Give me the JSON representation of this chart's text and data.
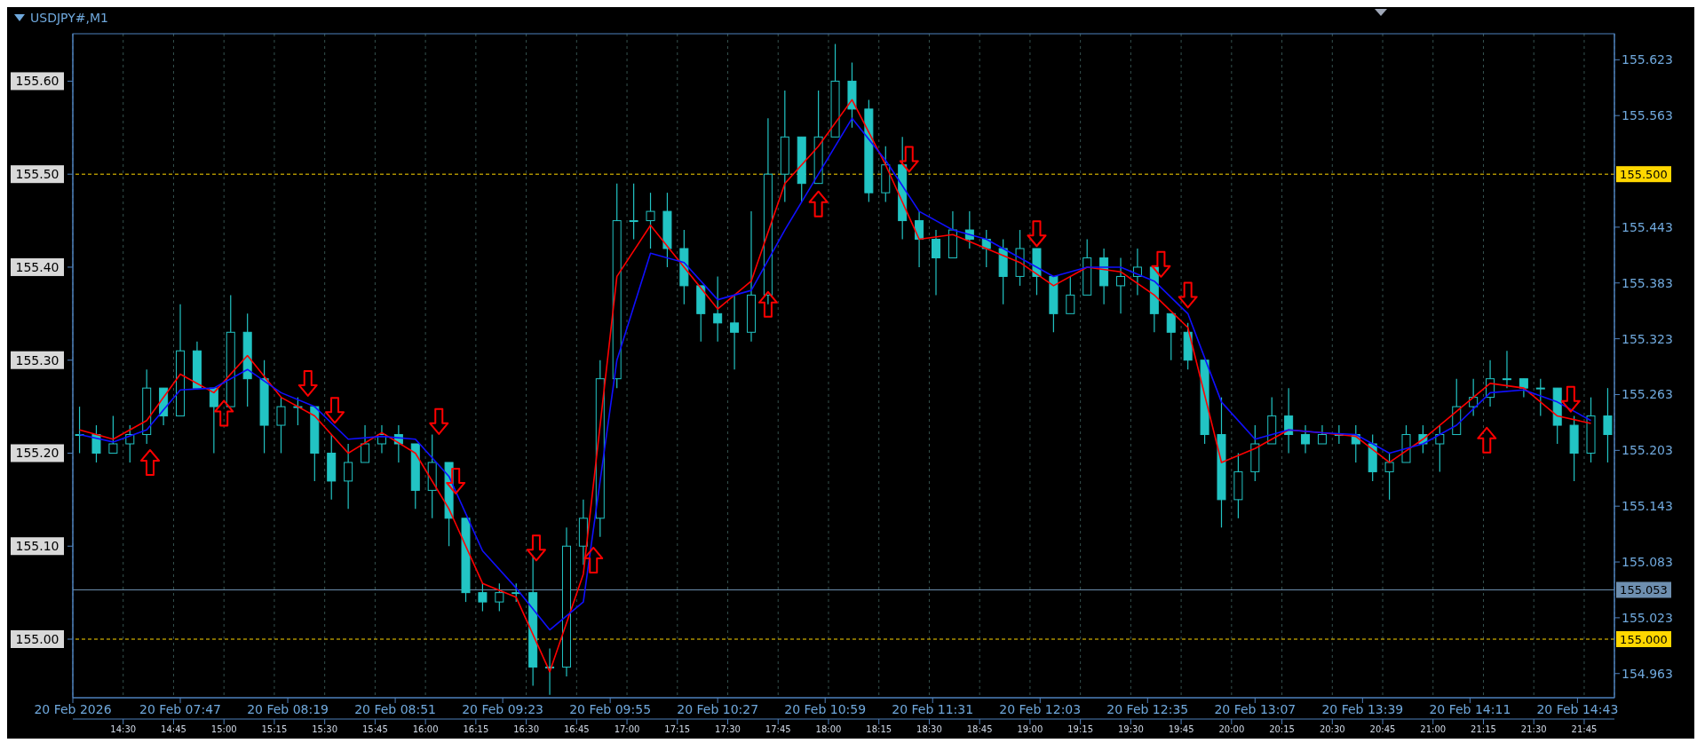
{
  "chart_data": {
    "type": "candlestick",
    "title": "USDJPY#,M1",
    "color": "#22c4c4",
    "x": [
      "2026-02-20T07:17",
      "2026-02-20T07:22",
      "2026-02-20T07:27",
      "2026-02-20T07:32",
      "2026-02-20T07:37",
      "2026-02-20T07:42",
      "2026-02-20T07:47",
      "2026-02-20T07:52",
      "2026-02-20T07:57",
      "2026-02-20T08:02",
      "2026-02-20T08:07",
      "2026-02-20T08:12",
      "2026-02-20T08:17",
      "2026-02-20T08:22",
      "2026-02-20T08:27",
      "2026-02-20T08:32",
      "2026-02-20T08:37",
      "2026-02-20T08:42",
      "2026-02-20T08:47",
      "2026-02-20T08:52",
      "2026-02-20T08:57",
      "2026-02-20T09:02",
      "2026-02-20T09:07",
      "2026-02-20T09:12",
      "2026-02-20T09:17",
      "2026-02-20T09:22",
      "2026-02-20T09:27",
      "2026-02-20T09:32",
      "2026-02-20T09:37",
      "2026-02-20T09:42",
      "2026-02-20T09:47",
      "2026-02-20T09:52",
      "2026-02-20T09:57",
      "2026-02-20T10:02",
      "2026-02-20T10:07",
      "2026-02-20T10:12",
      "2026-02-20T10:17",
      "2026-02-20T10:22",
      "2026-02-20T10:27",
      "2026-02-20T10:32",
      "2026-02-20T10:37",
      "2026-02-20T10:42",
      "2026-02-20T10:47",
      "2026-02-20T10:52",
      "2026-02-20T10:57",
      "2026-02-20T11:02",
      "2026-02-20T11:07",
      "2026-02-20T11:12",
      "2026-02-20T11:17",
      "2026-02-20T11:22",
      "2026-02-20T11:27",
      "2026-02-20T11:32",
      "2026-02-20T11:37",
      "2026-02-20T11:42",
      "2026-02-20T11:47",
      "2026-02-20T11:52",
      "2026-02-20T11:57",
      "2026-02-20T12:02",
      "2026-02-20T12:07",
      "2026-02-20T12:12",
      "2026-02-20T12:17",
      "2026-02-20T12:22",
      "2026-02-20T12:27",
      "2026-02-20T12:32",
      "2026-02-20T12:37",
      "2026-02-20T12:42",
      "2026-02-20T12:47",
      "2026-02-20T12:52",
      "2026-02-20T12:57",
      "2026-02-20T13:02",
      "2026-02-20T13:07",
      "2026-02-20T13:12",
      "2026-02-20T13:17",
      "2026-02-20T13:22",
      "2026-02-20T13:27",
      "2026-02-20T13:32",
      "2026-02-20T13:37",
      "2026-02-20T13:42",
      "2026-02-20T13:47",
      "2026-02-20T13:52",
      "2026-02-20T13:57",
      "2026-02-20T14:02",
      "2026-02-20T14:07",
      "2026-02-20T14:12",
      "2026-02-20T14:17",
      "2026-02-20T14:22",
      "2026-02-20T14:27",
      "2026-02-20T14:32",
      "2026-02-20T14:37",
      "2026-02-20T14:42",
      "2026-02-20T14:47",
      "2026-02-20T14:52"
    ],
    "ohlc": [
      [
        155.22,
        155.25,
        155.2,
        155.22
      ],
      [
        155.22,
        155.23,
        155.19,
        155.2
      ],
      [
        155.2,
        155.24,
        155.2,
        155.21
      ],
      [
        155.21,
        155.23,
        155.19,
        155.22
      ],
      [
        155.22,
        155.29,
        155.21,
        155.27
      ],
      [
        155.27,
        155.27,
        155.23,
        155.24
      ],
      [
        155.24,
        155.36,
        155.24,
        155.31
      ],
      [
        155.31,
        155.32,
        155.27,
        155.27
      ],
      [
        155.27,
        155.27,
        155.2,
        155.25
      ],
      [
        155.25,
        155.37,
        155.25,
        155.33
      ],
      [
        155.33,
        155.35,
        155.25,
        155.28
      ],
      [
        155.28,
        155.3,
        155.2,
        155.23
      ],
      [
        155.23,
        155.26,
        155.2,
        155.25
      ],
      [
        155.25,
        155.26,
        155.23,
        155.25
      ],
      [
        155.25,
        155.25,
        155.17,
        155.2
      ],
      [
        155.2,
        155.22,
        155.15,
        155.17
      ],
      [
        155.17,
        155.21,
        155.14,
        155.19
      ],
      [
        155.19,
        155.23,
        155.19,
        155.21
      ],
      [
        155.21,
        155.23,
        155.2,
        155.22
      ],
      [
        155.22,
        155.23,
        155.19,
        155.21
      ],
      [
        155.21,
        155.21,
        155.14,
        155.16
      ],
      [
        155.16,
        155.22,
        155.13,
        155.19
      ],
      [
        155.19,
        155.19,
        155.1,
        155.13
      ],
      [
        155.13,
        155.13,
        155.04,
        155.05
      ],
      [
        155.05,
        155.06,
        155.03,
        155.04
      ],
      [
        155.04,
        155.06,
        155.03,
        155.05
      ],
      [
        155.05,
        155.06,
        155.04,
        155.05
      ],
      [
        155.05,
        155.09,
        154.95,
        154.97
      ],
      [
        154.97,
        154.99,
        154.94,
        154.97
      ],
      [
        154.97,
        155.12,
        154.96,
        155.1
      ],
      [
        155.1,
        155.15,
        155.08,
        155.13
      ],
      [
        155.13,
        155.3,
        155.11,
        155.28
      ],
      [
        155.28,
        155.49,
        155.27,
        155.45
      ],
      [
        155.45,
        155.49,
        155.43,
        155.45
      ],
      [
        155.45,
        155.48,
        155.42,
        155.46
      ],
      [
        155.46,
        155.48,
        155.4,
        155.42
      ],
      [
        155.42,
        155.44,
        155.36,
        155.38
      ],
      [
        155.38,
        155.38,
        155.32,
        155.35
      ],
      [
        155.35,
        155.39,
        155.32,
        155.34
      ],
      [
        155.34,
        155.37,
        155.29,
        155.33
      ],
      [
        155.33,
        155.46,
        155.32,
        155.37
      ],
      [
        155.37,
        155.56,
        155.36,
        155.5
      ],
      [
        155.5,
        155.59,
        155.47,
        155.54
      ],
      [
        155.54,
        155.54,
        155.47,
        155.49
      ],
      [
        155.49,
        155.59,
        155.49,
        155.54
      ],
      [
        155.54,
        155.64,
        155.54,
        155.6
      ],
      [
        155.6,
        155.62,
        155.55,
        155.57
      ],
      [
        155.57,
        155.58,
        155.47,
        155.48
      ],
      [
        155.48,
        155.53,
        155.47,
        155.51
      ],
      [
        155.51,
        155.54,
        155.43,
        155.45
      ],
      [
        155.45,
        155.46,
        155.4,
        155.43
      ],
      [
        155.43,
        155.44,
        155.37,
        155.41
      ],
      [
        155.41,
        155.46,
        155.41,
        155.44
      ],
      [
        155.44,
        155.46,
        155.42,
        155.43
      ],
      [
        155.43,
        155.44,
        155.4,
        155.42
      ],
      [
        155.42,
        155.43,
        155.36,
        155.39
      ],
      [
        155.39,
        155.44,
        155.38,
        155.42
      ],
      [
        155.42,
        155.42,
        155.37,
        155.39
      ],
      [
        155.39,
        155.39,
        155.33,
        155.35
      ],
      [
        155.35,
        155.39,
        155.35,
        155.37
      ],
      [
        155.37,
        155.43,
        155.37,
        155.41
      ],
      [
        155.41,
        155.42,
        155.36,
        155.38
      ],
      [
        155.38,
        155.41,
        155.35,
        155.39
      ],
      [
        155.39,
        155.42,
        155.37,
        155.4
      ],
      [
        155.4,
        155.4,
        155.33,
        155.35
      ],
      [
        155.35,
        155.35,
        155.3,
        155.33
      ],
      [
        155.33,
        155.34,
        155.29,
        155.3
      ],
      [
        155.3,
        155.3,
        155.21,
        155.22
      ],
      [
        155.22,
        155.26,
        155.12,
        155.15
      ],
      [
        155.15,
        155.2,
        155.13,
        155.18
      ],
      [
        155.18,
        155.23,
        155.17,
        155.21
      ],
      [
        155.21,
        155.26,
        155.21,
        155.24
      ],
      [
        155.24,
        155.27,
        155.2,
        155.22
      ],
      [
        155.22,
        155.23,
        155.2,
        155.21
      ],
      [
        155.21,
        155.23,
        155.21,
        155.22
      ],
      [
        155.22,
        155.23,
        155.21,
        155.22
      ],
      [
        155.22,
        155.23,
        155.19,
        155.21
      ],
      [
        155.21,
        155.22,
        155.17,
        155.18
      ],
      [
        155.18,
        155.2,
        155.15,
        155.19
      ],
      [
        155.19,
        155.23,
        155.19,
        155.22
      ],
      [
        155.22,
        155.23,
        155.2,
        155.21
      ],
      [
        155.21,
        155.23,
        155.18,
        155.22
      ],
      [
        155.22,
        155.28,
        155.22,
        155.25
      ],
      [
        155.25,
        155.28,
        155.24,
        155.26
      ],
      [
        155.26,
        155.3,
        155.25,
        155.28
      ],
      [
        155.28,
        155.31,
        155.27,
        155.28
      ],
      [
        155.28,
        155.28,
        155.26,
        155.27
      ],
      [
        155.27,
        155.28,
        155.24,
        155.27
      ],
      [
        155.27,
        155.27,
        155.21,
        155.23
      ],
      [
        155.23,
        155.24,
        155.17,
        155.2
      ],
      [
        155.2,
        155.26,
        155.19,
        155.24
      ],
      [
        155.24,
        155.27,
        155.19,
        155.22
      ]
    ],
    "series": [
      {
        "type": "line",
        "color": "#ff0000",
        "x": [
          "2026-02-20T07:17",
          "2026-02-20T07:27",
          "2026-02-20T07:37",
          "2026-02-20T07:47",
          "2026-02-20T07:57",
          "2026-02-20T08:07",
          "2026-02-20T08:17",
          "2026-02-20T08:27",
          "2026-02-20T08:37",
          "2026-02-20T08:47",
          "2026-02-20T08:57",
          "2026-02-20T09:07",
          "2026-02-20T09:17",
          "2026-02-20T09:27",
          "2026-02-20T09:37",
          "2026-02-20T09:47",
          "2026-02-20T09:57",
          "2026-02-20T10:07",
          "2026-02-20T10:17",
          "2026-02-20T10:27",
          "2026-02-20T10:37",
          "2026-02-20T10:47",
          "2026-02-20T10:57",
          "2026-02-20T11:07",
          "2026-02-20T11:17",
          "2026-02-20T11:27",
          "2026-02-20T11:37",
          "2026-02-20T11:47",
          "2026-02-20T11:57",
          "2026-02-20T12:07",
          "2026-02-20T12:17",
          "2026-02-20T12:27",
          "2026-02-20T12:37",
          "2026-02-20T12:47",
          "2026-02-20T12:57",
          "2026-02-20T13:07",
          "2026-02-20T13:17",
          "2026-02-20T13:27",
          "2026-02-20T13:37",
          "2026-02-20T13:47",
          "2026-02-20T13:57",
          "2026-02-20T14:07",
          "2026-02-20T14:17",
          "2026-02-20T14:27",
          "2026-02-20T14:37",
          "2026-02-20T14:47"
        ],
        "values": [
          155.225,
          155.215,
          155.235,
          155.285,
          155.265,
          155.305,
          155.26,
          155.24,
          155.2,
          155.222,
          155.2,
          155.14,
          155.06,
          155.045,
          154.965,
          155.07,
          155.39,
          155.445,
          155.4,
          155.355,
          155.385,
          155.49,
          155.53,
          155.58,
          155.51,
          155.43,
          155.435,
          155.42,
          155.405,
          155.38,
          155.4,
          155.395,
          155.37,
          155.335,
          155.19,
          155.205,
          155.225,
          155.222,
          155.218,
          155.19,
          155.215,
          155.245,
          155.275,
          155.27,
          155.24,
          155.232
        ]
      },
      {
        "type": "line",
        "color": "#1010ff",
        "x": [
          "2026-02-20T07:17",
          "2026-02-20T07:27",
          "2026-02-20T07:37",
          "2026-02-20T07:47",
          "2026-02-20T07:57",
          "2026-02-20T08:07",
          "2026-02-20T08:17",
          "2026-02-20T08:27",
          "2026-02-20T08:37",
          "2026-02-20T08:47",
          "2026-02-20T08:57",
          "2026-02-20T09:07",
          "2026-02-20T09:17",
          "2026-02-20T09:27",
          "2026-02-20T09:37",
          "2026-02-20T09:47",
          "2026-02-20T09:57",
          "2026-02-20T10:07",
          "2026-02-20T10:17",
          "2026-02-20T10:27",
          "2026-02-20T10:37",
          "2026-02-20T10:47",
          "2026-02-20T10:57",
          "2026-02-20T11:07",
          "2026-02-20T11:17",
          "2026-02-20T11:27",
          "2026-02-20T11:37",
          "2026-02-20T11:47",
          "2026-02-20T11:57",
          "2026-02-20T12:07",
          "2026-02-20T12:17",
          "2026-02-20T12:27",
          "2026-02-20T12:37",
          "2026-02-20T12:47",
          "2026-02-20T12:57",
          "2026-02-20T13:07",
          "2026-02-20T13:17",
          "2026-02-20T13:27",
          "2026-02-20T13:37",
          "2026-02-20T13:47",
          "2026-02-20T13:57",
          "2026-02-20T14:07",
          "2026-02-20T14:17",
          "2026-02-20T14:27",
          "2026-02-20T14:37",
          "2026-02-20T14:47"
        ],
        "values": [
          155.22,
          155.212,
          155.225,
          155.268,
          155.27,
          155.29,
          155.265,
          155.25,
          155.215,
          155.218,
          155.215,
          155.175,
          155.095,
          155.055,
          155.01,
          155.04,
          155.3,
          155.415,
          155.405,
          155.365,
          155.375,
          155.44,
          155.5,
          155.56,
          155.515,
          155.46,
          155.44,
          155.43,
          155.41,
          155.39,
          155.4,
          155.4,
          155.385,
          155.35,
          155.255,
          155.215,
          155.225,
          155.222,
          155.22,
          155.2,
          155.21,
          155.23,
          155.265,
          155.268,
          155.255,
          155.235
        ]
      },
      {
        "type": "scatter",
        "marker": "triangle",
        "color": "#ff0000",
        "x": [
          "2026-02-20T07:38",
          "2026-02-20T08:00",
          "2026-02-20T09:50",
          "2026-02-20T10:42",
          "2026-02-20T10:57",
          "2026-02-20T14:16"
        ],
        "values": [
          155.19,
          155.243,
          155.085,
          155.36,
          155.468,
          155.214
        ]
      },
      {
        "type": "scatter",
        "marker": "triangle",
        "color": "#ff0000",
        "x": [
          "2026-02-20T08:25",
          "2026-02-20T08:33",
          "2026-02-20T09:04",
          "2026-02-20T09:09",
          "2026-02-20T09:33",
          "2026-02-20T11:24",
          "2026-02-20T12:02",
          "2026-02-20T12:39",
          "2026-02-20T12:47",
          "2026-02-20T14:41"
        ],
        "values": [
          155.275,
          155.246,
          155.234,
          155.17,
          155.098,
          155.516,
          155.436,
          155.403,
          155.37,
          155.258
        ]
      }
    ],
    "xlim": [
      "2026-02-20T07:15",
      "2026-02-20T14:54"
    ],
    "xticks": [
      {
        "value": "2026-02-20T07:15",
        "label": "20 Feb 2026"
      },
      {
        "value": "2026-02-20T07:47",
        "label": "20 Feb 07:47"
      },
      {
        "value": "2026-02-20T08:19",
        "label": "20 Feb 08:19"
      },
      {
        "value": "2026-02-20T08:51",
        "label": "20 Feb 08:51"
      },
      {
        "value": "2026-02-20T09:23",
        "label": "20 Feb 09:23"
      },
      {
        "value": "2026-02-20T09:55",
        "label": "20 Feb 09:55"
      },
      {
        "value": "2026-02-20T10:27",
        "label": "20 Feb 10:27"
      },
      {
        "value": "2026-02-20T10:59",
        "label": "20 Feb 10:59"
      },
      {
        "value": "2026-02-20T11:31",
        "label": "20 Feb 11:31"
      },
      {
        "value": "2026-02-20T12:03",
        "label": "20 Feb 12:03"
      },
      {
        "value": "2026-02-20T12:35",
        "label": "20 Feb 12:35"
      },
      {
        "value": "2026-02-20T13:07",
        "label": "20 Feb 13:07"
      },
      {
        "value": "2026-02-20T13:39",
        "label": "20 Feb 13:39"
      },
      {
        "value": "2026-02-20T14:11",
        "label": "20 Feb 14:11"
      },
      {
        "value": "2026-02-20T14:43",
        "label": "20 Feb 14:43"
      }
    ],
    "x2lim": [
      14.25,
      21.9
    ],
    "x2ticks": [
      {
        "value": 14.5,
        "label": "14:30"
      },
      {
        "value": 14.75,
        "label": "14:45"
      },
      {
        "value": 15,
        "label": "15:00"
      },
      {
        "value": 15.25,
        "label": "15:15"
      },
      {
        "value": 15.5,
        "label": "15:30"
      },
      {
        "value": 15.75,
        "label": "15:45"
      },
      {
        "value": 16,
        "label": "16:00"
      },
      {
        "value": 16.25,
        "label": "16:15"
      },
      {
        "value": 16.5,
        "label": "16:30"
      },
      {
        "value": 16.75,
        "label": "16:45"
      },
      {
        "value": 17,
        "label": "17:00"
      },
      {
        "value": 17.25,
        "label": "17:15"
      },
      {
        "value": 17.5,
        "label": "17:30"
      },
      {
        "value": 17.75,
        "label": "17:45"
      },
      {
        "value": 18,
        "label": "18:00"
      },
      {
        "value": 18.25,
        "label": "18:15"
      },
      {
        "value": 18.5,
        "label": "18:30"
      },
      {
        "value": 18.75,
        "label": "18:45"
      },
      {
        "value": 19,
        "label": "19:00"
      },
      {
        "value": 19.25,
        "label": "19:15"
      },
      {
        "value": 19.5,
        "label": "19:30"
      },
      {
        "value": 19.75,
        "label": "19:45"
      },
      {
        "value": 20,
        "label": "20:00"
      },
      {
        "value": 20.25,
        "label": "20:15"
      },
      {
        "value": 20.5,
        "label": "20:30"
      },
      {
        "value": 20.75,
        "label": "20:45"
      },
      {
        "value": 21,
        "label": "21:00"
      },
      {
        "value": 21.25,
        "label": "21:15"
      },
      {
        "value": 21.5,
        "label": "21:30"
      },
      {
        "value": 21.75,
        "label": "21:45"
      }
    ],
    "ylim": [
      154.937,
      155.651
    ],
    "yticks": [
      {
        "value": 155,
        "label": "155.00"
      },
      {
        "value": 155.1,
        "label": "155.10"
      },
      {
        "value": 155.2,
        "label": "155.20"
      },
      {
        "value": 155.3,
        "label": "155.30"
      },
      {
        "value": 155.4,
        "label": "155.40"
      },
      {
        "value": 155.5,
        "label": "155.50"
      },
      {
        "value": 155.6,
        "label": "155.60"
      }
    ],
    "y2lim": [
      154.937,
      155.651
    ],
    "y2ticks": [
      154.963,
      155.023,
      155.083,
      155.143,
      155.203,
      155.263,
      155.323,
      155.383,
      155.443,
      155.563,
      155.623
    ],
    "ref_lines": [
      {
        "axis": "y2",
        "value": 155.5,
        "label": "155.500",
        "color": "#ffd700",
        "line_style": "dashed"
      },
      {
        "axis": "y2",
        "value": 155.0,
        "label": "155.000",
        "color": "#ffd700",
        "line_style": "dashed"
      },
      {
        "axis": "y2",
        "value": 155.053,
        "label": "155.053",
        "color": "#6e8fb0",
        "line_style": "solid"
      }
    ],
    "grid": "x"
  }
}
